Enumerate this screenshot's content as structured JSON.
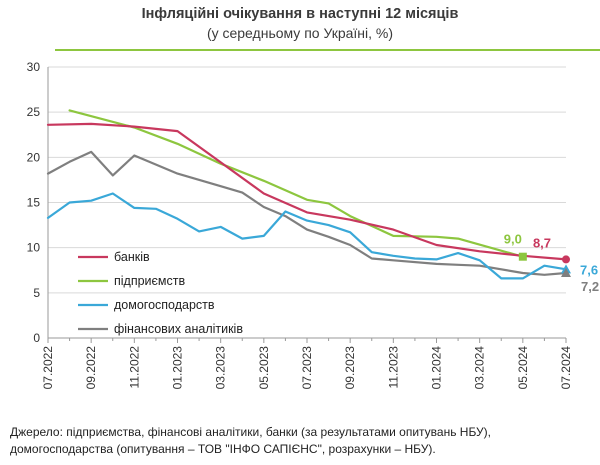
{
  "chart_data": {
    "type": "line",
    "title": "Інфляційні очікування в наступні  12 місяців",
    "subtitle": "(у середньому по Україні, %)",
    "categories": [
      "07.2022",
      "08.2022",
      "09.2022",
      "10.2022",
      "11.2022",
      "12.2022",
      "01.2023",
      "02.2023",
      "03.2023",
      "04.2023",
      "05.2023",
      "06.2023",
      "07.2023",
      "08.2023",
      "09.2023",
      "10.2023",
      "11.2023",
      "12.2023",
      "01.2024",
      "02.2024",
      "03.2024",
      "04.2024",
      "05.2024",
      "06.2024",
      "07.2024"
    ],
    "tick_labels": [
      "07.2022",
      "09.2022",
      "11.2022",
      "01.2023",
      "03.2023",
      "05.2023",
      "07.2023",
      "09.2023",
      "11.2023",
      "01.2024",
      "03.2024",
      "05.2024",
      "07.2024"
    ],
    "ylim": [
      0,
      30
    ],
    "yticks": [
      0,
      5,
      10,
      15,
      20,
      25,
      30
    ],
    "series": [
      {
        "name": "банків",
        "color": "#c8385e",
        "marker": "circle",
        "end_label": "8,7",
        "values": [
          23.6,
          null,
          23.7,
          null,
          23.4,
          null,
          22.9,
          null,
          null,
          null,
          16.0,
          null,
          13.9,
          null,
          13.1,
          null,
          12.0,
          null,
          10.3,
          null,
          9.6,
          null,
          9.1,
          null,
          8.7
        ]
      },
      {
        "name": "підприємств",
        "color": "#8dc63f",
        "marker": "square",
        "end_label": "9,0",
        "end_index": 22,
        "values": [
          null,
          25.2,
          null,
          null,
          23.3,
          null,
          21.5,
          null,
          19.3,
          null,
          17.4,
          null,
          15.3,
          14.9,
          13.5,
          null,
          11.3,
          null,
          11.2,
          11.0,
          null,
          null,
          9.0,
          null,
          null
        ]
      },
      {
        "name": "домогосподарств",
        "color": "#3aa8d8",
        "marker": "triangle",
        "end_label": "7,6",
        "values": [
          13.3,
          15.0,
          15.2,
          16.0,
          14.4,
          14.3,
          13.2,
          11.8,
          12.3,
          11.0,
          11.3,
          14.0,
          13.0,
          12.5,
          11.7,
          9.5,
          9.1,
          8.8,
          8.7,
          9.4,
          8.6,
          6.6,
          6.6,
          8.0,
          7.6
        ]
      },
      {
        "name": "фінансових  аналітиків",
        "color": "#7f7f7f",
        "marker": "triangle",
        "end_label": "7,2",
        "values": [
          18.2,
          19.5,
          20.6,
          18.0,
          20.2,
          null,
          18.2,
          null,
          16.8,
          16.1,
          14.5,
          13.5,
          12.0,
          11.2,
          10.3,
          8.8,
          8.6,
          null,
          8.2,
          8.1,
          8.0,
          null,
          7.2,
          7.0,
          7.2
        ]
      }
    ],
    "legend_position": "lower-left"
  },
  "source_note": "Джерело: підприємства, фінансові аналітики, банки (за результатами опитувань НБУ), домогосподарства (опитування – ТОВ \"ІНФО САПІЄНС\", розрахунки – НБУ)."
}
